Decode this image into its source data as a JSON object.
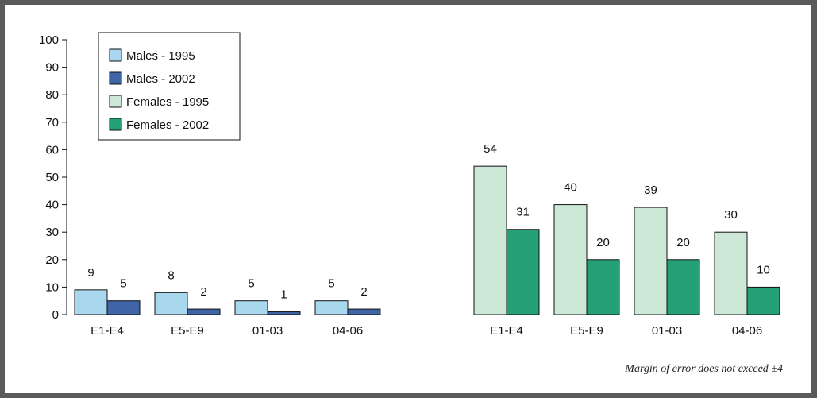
{
  "chart_data": {
    "type": "bar",
    "ylim": [
      0,
      100
    ],
    "yticks": [
      0,
      10,
      20,
      30,
      40,
      50,
      60,
      70,
      80,
      90,
      100
    ],
    "legend_position": "top-left",
    "grid": false,
    "groups": [
      {
        "categories": [
          "E1-E4",
          "E5-E9",
          "01-03",
          "04-06"
        ],
        "series": [
          {
            "name": "Males - 1995",
            "values": [
              9,
              8,
              5,
              5
            ],
            "color": "#a9d8ee"
          },
          {
            "name": "Males - 2002",
            "values": [
              5,
              2,
              1,
              2
            ],
            "color": "#3f64a8"
          }
        ]
      },
      {
        "categories": [
          "E1-E4",
          "E5-E9",
          "01-03",
          "04-06"
        ],
        "series": [
          {
            "name": "Females - 1995",
            "values": [
              54,
              40,
              39,
              30
            ],
            "color": "#cde8d7"
          },
          {
            "name": "Females - 2002",
            "values": [
              31,
              20,
              20,
              10
            ],
            "color": "#25a077"
          }
        ]
      }
    ],
    "legend": [
      {
        "name": "Males - 1995",
        "color": "#a9d8ee"
      },
      {
        "name": "Males - 2002",
        "color": "#3f64a8"
      },
      {
        "name": "Females - 1995",
        "color": "#cde8d7"
      },
      {
        "name": "Females - 2002",
        "color": "#25a077"
      }
    ]
  },
  "footnote": "Margin of error does not exceed ±4"
}
